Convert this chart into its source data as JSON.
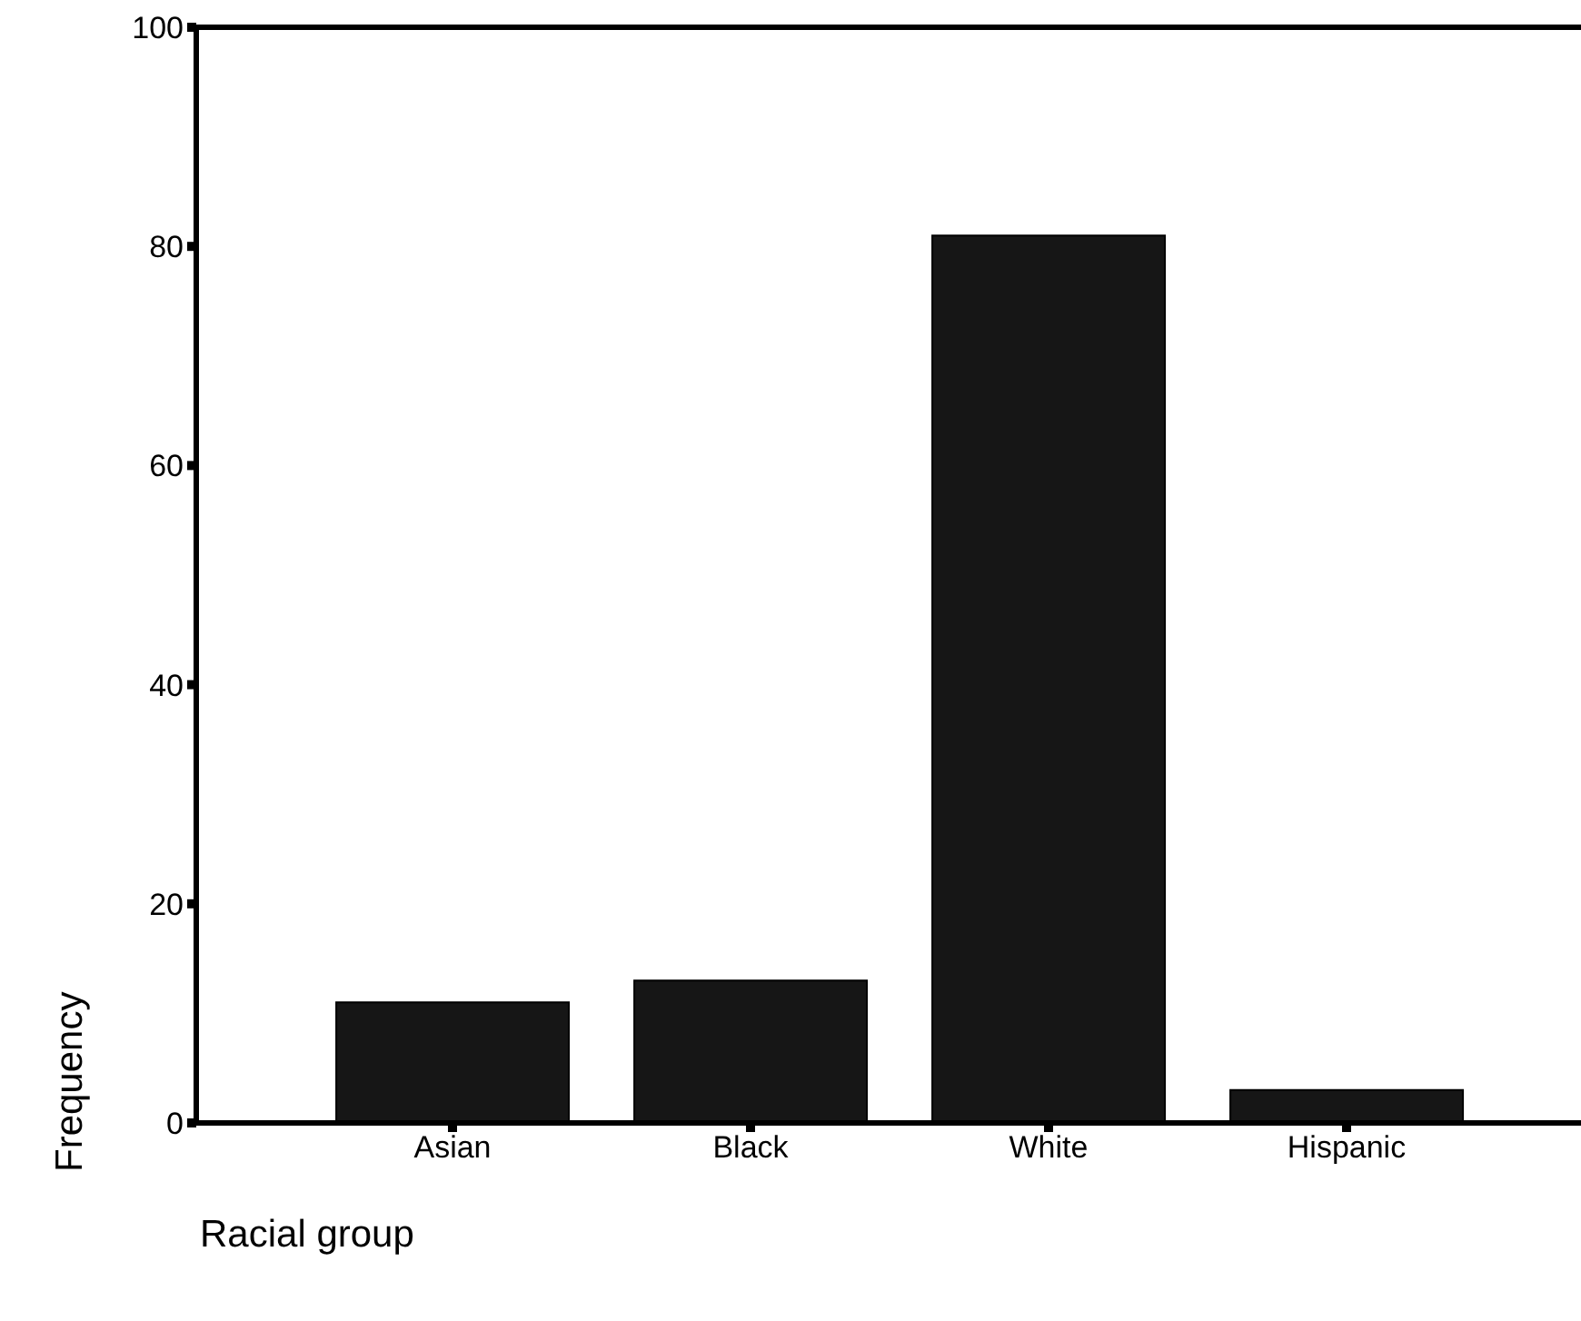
{
  "chart_data": {
    "type": "bar",
    "xlabel": "Racial group",
    "ylabel": "Frequency",
    "categories": [
      "Asian",
      "Black",
      "White",
      "Hispanic"
    ],
    "values": [
      11,
      13,
      81,
      3
    ],
    "color": "#161616",
    "ylim": [
      0,
      100
    ],
    "yticks": [
      0,
      20,
      40,
      60,
      80,
      100
    ],
    "grid": false
  }
}
